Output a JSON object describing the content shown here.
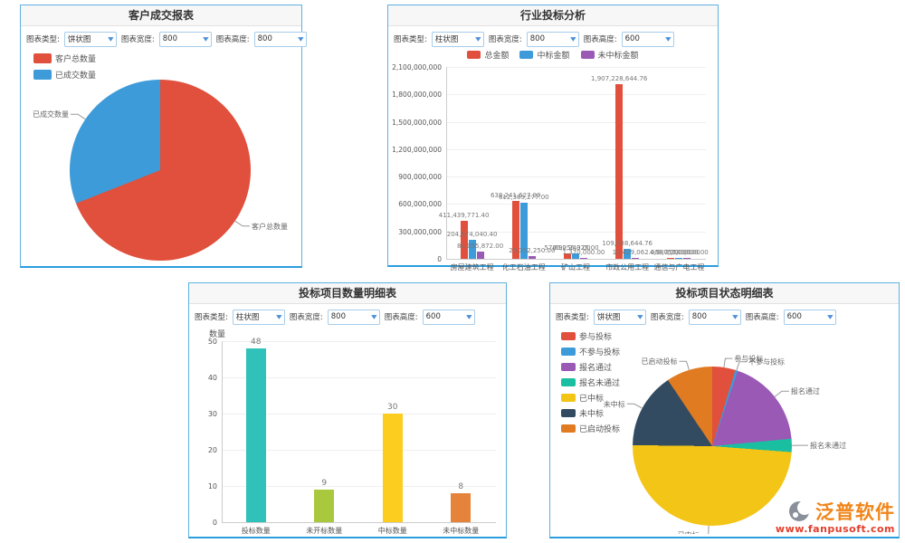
{
  "panels": {
    "customer_report": {
      "title": "客户成交报表",
      "controls": {
        "type_label": "图表类型:",
        "type_value": "饼状图",
        "width_label": "图表宽度:",
        "width_value": "800",
        "height_label": "图表高度:",
        "height_value": "800"
      }
    },
    "industry_bid_analysis": {
      "title": "行业投标分析",
      "controls": {
        "type_label": "图表类型:",
        "type_value": "柱状图",
        "width_label": "图表宽度:",
        "width_value": "800",
        "height_label": "图表高度:",
        "height_value": "600"
      }
    },
    "bid_quantity_detail": {
      "title": "投标项目数量明细表",
      "controls": {
        "type_label": "图表类型:",
        "type_value": "柱状图",
        "width_label": "图表宽度:",
        "width_value": "800",
        "height_label": "图表高度:",
        "height_value": "600"
      }
    },
    "bid_status_detail": {
      "title": "投标项目状态明细表",
      "controls": {
        "type_label": "图表类型:",
        "type_value": "饼状图",
        "width_label": "图表宽度:",
        "width_value": "800",
        "height_label": "图表高度:",
        "height_value": "600"
      }
    }
  },
  "chart_data": [
    {
      "type": "pie",
      "panel": "customer_report",
      "title": "客户成交报表",
      "legend_position": "top-left",
      "slices": [
        {
          "label": "客户总数量",
          "value": 69,
          "color": "#e0503c"
        },
        {
          "label": "已成交数量",
          "value": 31,
          "color": "#3d9bd9"
        }
      ]
    },
    {
      "type": "bar",
      "panel": "industry_bid_analysis",
      "title": "行业投标分析",
      "categories": [
        "房屋建筑工程",
        "化工石油工程",
        "矿山工程",
        "市政公用工程",
        "通信与广电工程"
      ],
      "series": [
        {
          "name": "总金额",
          "color": "#e0503c",
          "values": [
            411439771.4,
            638241627.99,
            57690240.0,
            1907228644.76,
            4980000.0
          ]
        },
        {
          "name": "中标金额",
          "color": "#3d9bd9",
          "values": [
            204574040.4,
            612389277.0,
            60256325.0,
            109838644.76,
            3750000.0
          ]
        },
        {
          "name": "未中标金额",
          "color": "#9b59b6",
          "values": [
            81055872.0,
            26352250.0,
            1370000.0,
            10429062.0,
            7580000.0
          ]
        }
      ],
      "xlabel": "",
      "ylabel": "",
      "ylim": [
        0,
        2100000000
      ],
      "ytick_step": 300000000,
      "grid": true,
      "legend_position": "top-center",
      "value_labels": true
    },
    {
      "type": "bar",
      "panel": "bid_quantity_detail",
      "title": "投标项目数量明细表",
      "categories": [
        "投标数量",
        "未开标数量",
        "中标数量",
        "未中标数量"
      ],
      "values": [
        48,
        9,
        30,
        8
      ],
      "colors": [
        "#30c1bb",
        "#a9c83d",
        "#fccd1e",
        "#e5833a"
      ],
      "xlabel": "",
      "ylabel": "数量",
      "ylim": [
        0,
        50
      ],
      "ytick_step": 10,
      "grid": true,
      "value_labels": true
    },
    {
      "type": "pie",
      "panel": "bid_status_detail",
      "title": "投标项目状态明细表",
      "legend_position": "top-left",
      "slices": [
        {
          "label": "参与投标",
          "value": 4.7,
          "color": "#e0503c"
        },
        {
          "label": "不参与投标",
          "value": 0.5,
          "color": "#3d9bd9"
        },
        {
          "label": "报名通过",
          "value": 18.3,
          "color": "#9b59b6"
        },
        {
          "label": "报名未通过",
          "value": 2.7,
          "color": "#19bfa0"
        },
        {
          "label": "已中标",
          "value": 49.0,
          "color": "#f3c516"
        },
        {
          "label": "未中标",
          "value": 15.4,
          "color": "#334b61"
        },
        {
          "label": "已启动投标",
          "value": 9.4,
          "color": "#e07b21"
        }
      ]
    }
  ],
  "watermark": {
    "brand": "泛普软件",
    "url": "www.fanpusoft.com",
    "brand_color": "#f08519",
    "url_color": "#e23e2b",
    "logo_color": "#8a909a"
  }
}
